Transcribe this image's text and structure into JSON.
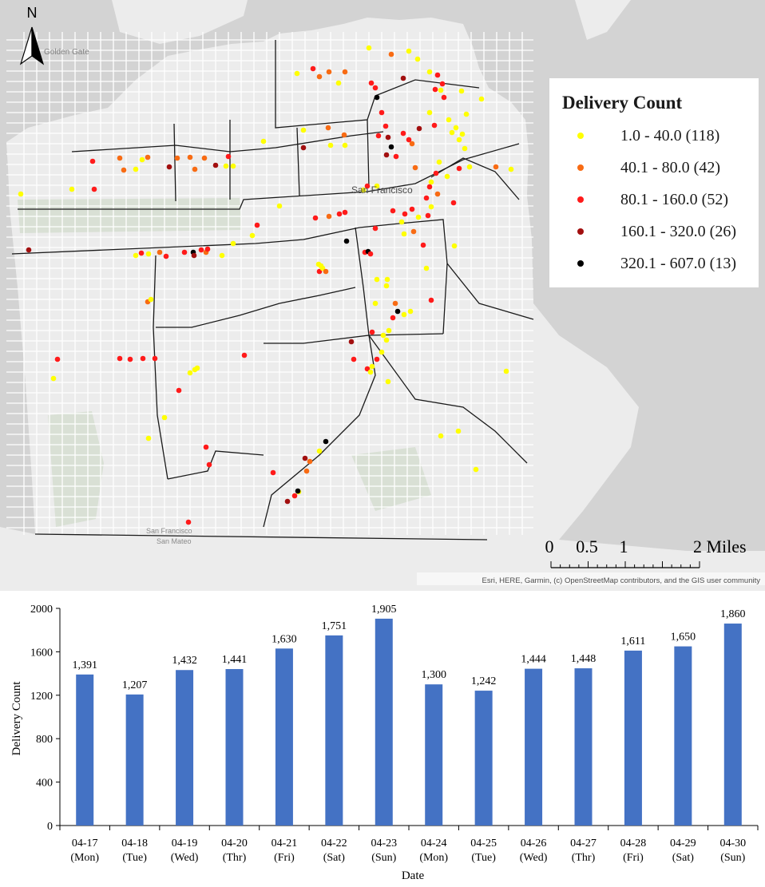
{
  "map": {
    "north_label": "N",
    "city_label": "San Francisco",
    "golden_gate_label": "Golden Gate",
    "sf_bottom_label": "San Francisco",
    "sm_bottom_label": "San Mateo",
    "attribution": "Esri, HERE, Garmin, (c) OpenStreetMap contributors, and the GIS user community",
    "scale_labels": [
      "0",
      "0.5",
      "1",
      "2 Miles"
    ],
    "colors": {
      "land": "#ececec",
      "water": "#d3d3d3",
      "park": "#d9e0d5",
      "tier1": "#ffff00",
      "tier2": "#f86b13",
      "tier3": "#ff1a1a",
      "tier4": "#a20f0f",
      "tier5": "#000000"
    },
    "legend": {
      "title": "Delivery Count",
      "items": [
        {
          "label": "1.0 - 40.0 (118)",
          "color": "#ffff00"
        },
        {
          "label": "40.1 - 80.0 (42)",
          "color": "#f86b13"
        },
        {
          "label": "80.1 - 160.0 (52)",
          "color": "#ff1a1a"
        },
        {
          "label": "160.1 - 320.0 (26)",
          "color": "#a20f0f"
        },
        {
          "label": "320.1 - 607.0 (13)",
          "color": "#000000"
        }
      ]
    }
  },
  "chart_data": {
    "type": "bar",
    "categories": [
      [
        "04-17",
        "(Mon)"
      ],
      [
        "04-18",
        "(Tue)"
      ],
      [
        "04-19",
        "(Wed)"
      ],
      [
        "04-20",
        "(Thr)"
      ],
      [
        "04-21",
        "(Fri)"
      ],
      [
        "04-22",
        "(Sat)"
      ],
      [
        "04-23",
        "(Sun)"
      ],
      [
        "04-24",
        "(Mon)"
      ],
      [
        "04-25",
        "(Tue)"
      ],
      [
        "04-26",
        "(Wed)"
      ],
      [
        "04-27",
        "(Thr)"
      ],
      [
        "04-28",
        "(Fri)"
      ],
      [
        "04-29",
        "(Sat)"
      ],
      [
        "04-30",
        "(Sun)"
      ]
    ],
    "values": [
      1391,
      1207,
      1432,
      1441,
      1630,
      1751,
      1905,
      1300,
      1242,
      1444,
      1448,
      1611,
      1650,
      1860
    ],
    "value_labels": [
      "1,391",
      "1,207",
      "1,432",
      "1,441",
      "1,630",
      "1,751",
      "1,905",
      "1,300",
      "1,242",
      "1,444",
      "1,448",
      "1,611",
      "1,650",
      "1,860"
    ],
    "xlabel": "Date",
    "ylabel": "Delivery Count",
    "ylim": [
      0,
      2000
    ],
    "yticks": [
      0,
      400,
      800,
      1200,
      1600,
      2000
    ],
    "bar_color": "#4472c4",
    "grid": false
  }
}
